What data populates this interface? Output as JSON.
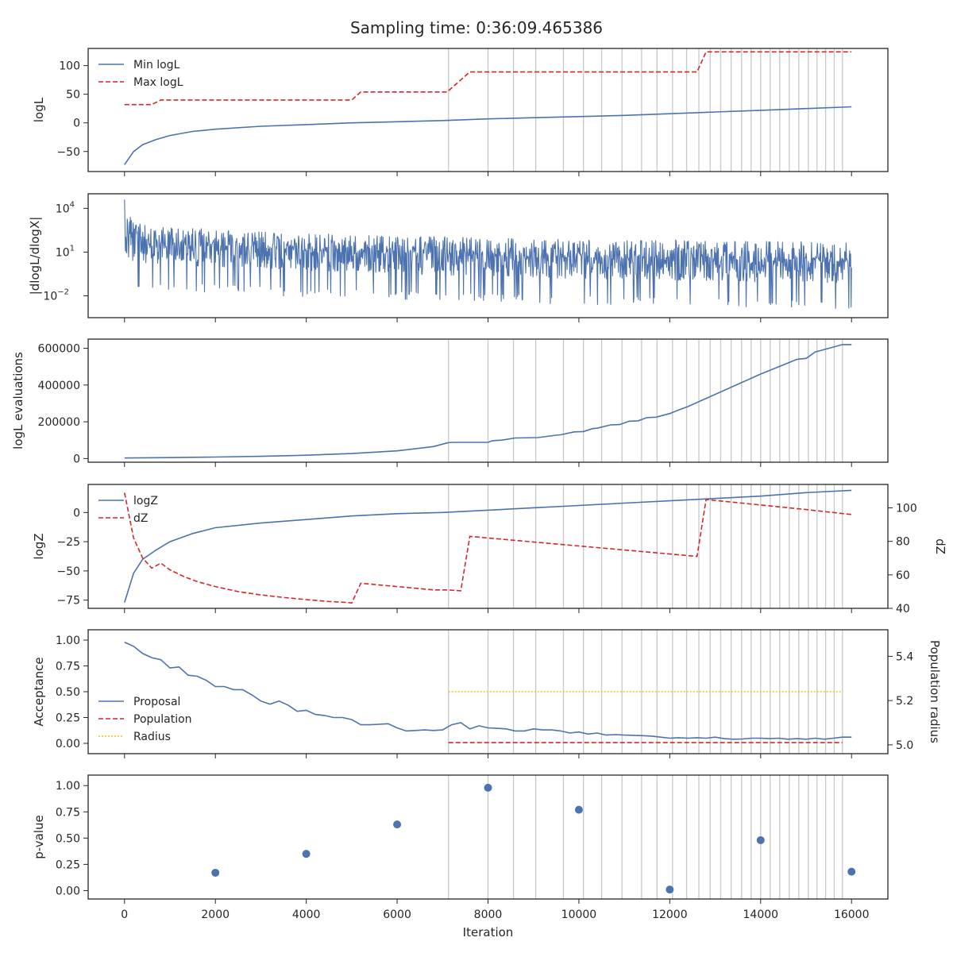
{
  "figure_title": "Sampling time: 0:36:09.465386",
  "colors": {
    "blue": "#4c72b0",
    "red": "#d62728",
    "gold": "#f2c12e",
    "vline": "#c8c8c8",
    "frame": "#262626"
  },
  "x_axis": {
    "label": "Iteration",
    "ticks": [
      0,
      2000,
      4000,
      6000,
      8000,
      10000,
      12000,
      14000,
      16000
    ],
    "range": [
      -800,
      16800
    ]
  },
  "vertical_lines": [
    7130,
    8000,
    8560,
    9050,
    9660,
    10100,
    10500,
    10950,
    11380,
    11720,
    12060,
    12370,
    12640,
    12890,
    13120,
    13350,
    13580,
    13790,
    14000,
    14210,
    14420,
    14630,
    14840,
    15050,
    15240,
    15430,
    15620,
    15800
  ],
  "chart_data": [
    {
      "type": "line",
      "ylabel": "logL",
      "ylim": [
        -85,
        130
      ],
      "yticks": [
        -50,
        0,
        50,
        100
      ],
      "ytick_labels": [
        "−50",
        "0",
        "50",
        "100"
      ],
      "legend": {
        "placement": "top-left",
        "entries": [
          "Min logL",
          "Max logL"
        ]
      },
      "series": [
        {
          "name": "Min logL",
          "style": "solid",
          "x": [
            0,
            200,
            400,
            700,
            1000,
            1500,
            2000,
            3000,
            4000,
            5000,
            6000,
            7000,
            8000,
            9000,
            10000,
            11000,
            12000,
            13000,
            14000,
            15000,
            16000
          ],
          "y": [
            -73,
            -50,
            -38,
            -29,
            -22,
            -15,
            -11,
            -6,
            -3,
            0,
            2,
            4,
            7,
            9,
            11,
            13,
            16,
            19,
            22,
            25,
            28
          ]
        },
        {
          "name": "Max logL",
          "style": "dashed",
          "x": [
            0,
            600,
            800,
            5000,
            5200,
            7100,
            7600,
            12600,
            12800,
            16000
          ],
          "y": [
            32,
            32,
            40,
            40,
            54,
            54,
            89,
            89,
            124,
            124
          ]
        }
      ]
    },
    {
      "type": "line",
      "ylabel": "|dlogL/dlogX|",
      "yscale": "log",
      "ylim": [
        -3.5,
        5
      ],
      "yticks": [
        -2,
        1,
        4
      ],
      "series": [
        {
          "name": "",
          "style": "noisy",
          "x_range": [
            0,
            16000
          ],
          "envelope_log10_upper": [
            4.6,
            3.2,
            2.8,
            2.5,
            2.3,
            2.2
          ],
          "envelope_log10_lower": [
            -1.5,
            -2.0,
            -2.3,
            -2.6,
            -2.8,
            -3.0
          ]
        }
      ]
    },
    {
      "type": "line",
      "ylabel": "logL evaluations",
      "ylim": [
        -20000,
        650000
      ],
      "yticks": [
        0,
        200000,
        400000,
        600000
      ],
      "ytick_labels": [
        "0",
        "200000",
        "400000",
        "600000"
      ],
      "series": [
        {
          "name": "",
          "style": "solid",
          "x": [
            0,
            1000,
            2000,
            3000,
            4000,
            5000,
            6000,
            6800,
            7100,
            7200,
            8000,
            8100,
            8300,
            8600,
            9100,
            9500,
            9600,
            9900,
            10100,
            10300,
            10400,
            10700,
            10900,
            11100,
            11300,
            11500,
            11700,
            12000,
            12200,
            12400,
            14000,
            14400,
            14600,
            14800,
            15000,
            15200,
            15800,
            16000
          ],
          "y": [
            3000,
            5000,
            8000,
            12000,
            18000,
            27000,
            42000,
            65000,
            85000,
            88000,
            88000,
            97000,
            100000,
            112000,
            114000,
            127000,
            129000,
            145000,
            147000,
            163000,
            165000,
            183000,
            185000,
            203000,
            205000,
            223000,
            225000,
            245000,
            265000,
            283000,
            460000,
            500000,
            520000,
            540000,
            545000,
            580000,
            620000,
            620000
          ]
        }
      ]
    },
    {
      "type": "line",
      "ylabel": "logZ",
      "y2label": "dZ",
      "ylim": [
        -82,
        24
      ],
      "yticks": [
        -75,
        -50,
        -25,
        0
      ],
      "ytick_labels": [
        "−75",
        "−50",
        "−25",
        "0"
      ],
      "y2lim": [
        40,
        114
      ],
      "y2ticks": [
        40,
        60,
        80,
        100
      ],
      "legend": {
        "placement": "top-left",
        "entries": [
          "logZ",
          "dZ"
        ]
      },
      "series": [
        {
          "name": "logZ",
          "axis": "left",
          "style": "solid",
          "x": [
            0,
            200,
            400,
            700,
            1000,
            1500,
            2000,
            3000,
            4000,
            5000,
            6000,
            7000,
            8000,
            9000,
            10000,
            11000,
            12000,
            13000,
            14000,
            15000,
            16000
          ],
          "y": [
            -77,
            -52,
            -40,
            -32,
            -25,
            -18,
            -13,
            -9,
            -6,
            -3,
            -1,
            0,
            2,
            4,
            6,
            8,
            10,
            12,
            14,
            17,
            19
          ]
        },
        {
          "name": "dZ",
          "axis": "right",
          "style": "dashed",
          "x": [
            0,
            200,
            400,
            600,
            800,
            1000,
            1300,
            1600,
            2000,
            2500,
            3000,
            3500,
            4000,
            4500,
            4900,
            5000,
            5200,
            6800,
            7100,
            7400,
            7600,
            12600,
            12800,
            15000,
            16000
          ],
          "y": [
            109,
            82,
            70,
            64,
            67,
            63,
            59,
            56,
            53,
            50,
            48,
            46.5,
            45.2,
            44.1,
            43.5,
            43.2,
            55,
            51,
            51,
            50.5,
            83,
            71,
            105,
            99,
            96
          ]
        }
      ]
    },
    {
      "type": "line",
      "ylabel": "Acceptance",
      "y2label": "Population radius",
      "ylim": [
        -0.1,
        1.1
      ],
      "yticks": [
        0.0,
        0.25,
        0.5,
        0.75,
        1.0
      ],
      "ytick_labels": [
        "0.00",
        "0.25",
        "0.50",
        "0.75",
        "1.00"
      ],
      "y2lim": [
        4.96,
        5.52
      ],
      "y2ticks": [
        5.0,
        5.2,
        5.4
      ],
      "y2tick_labels": [
        "5.0",
        "5.2",
        "5.4"
      ],
      "legend": {
        "placement": "center-left",
        "entries": [
          "Proposal",
          "Population",
          "Radius"
        ]
      },
      "series": [
        {
          "name": "Proposal",
          "axis": "left",
          "style": "solid",
          "x": [
            0,
            200,
            400,
            600,
            800,
            1000,
            1200,
            1400,
            1600,
            1800,
            2000,
            2200,
            2400,
            2600,
            2800,
            3000,
            3200,
            3400,
            3600,
            3800,
            4000,
            4200,
            4400,
            4600,
            4800,
            5000,
            5200,
            5400,
            5600,
            5800,
            6000,
            6200,
            6400,
            6600,
            6800,
            7000,
            7200,
            7400,
            7600,
            7800,
            8000,
            8200,
            8400,
            8600,
            8800,
            9000,
            9200,
            9400,
            9600,
            9800,
            10000,
            10200,
            10400,
            10600,
            10800,
            11000,
            11200,
            11400,
            11600,
            11800,
            12000,
            12200,
            12400,
            12600,
            12800,
            13000,
            13200,
            13400,
            13600,
            13800,
            14000,
            14200,
            14400,
            14600,
            14800,
            15000,
            15200,
            15400,
            15600,
            15800,
            16000
          ],
          "y": [
            0.98,
            0.94,
            0.87,
            0.83,
            0.81,
            0.73,
            0.74,
            0.66,
            0.65,
            0.61,
            0.55,
            0.55,
            0.52,
            0.52,
            0.47,
            0.41,
            0.38,
            0.41,
            0.37,
            0.31,
            0.32,
            0.28,
            0.27,
            0.25,
            0.25,
            0.23,
            0.18,
            0.18,
            0.185,
            0.19,
            0.15,
            0.12,
            0.125,
            0.13,
            0.125,
            0.13,
            0.18,
            0.2,
            0.14,
            0.17,
            0.15,
            0.145,
            0.14,
            0.12,
            0.12,
            0.14,
            0.13,
            0.13,
            0.12,
            0.1,
            0.11,
            0.09,
            0.1,
            0.08,
            0.085,
            0.08,
            0.078,
            0.075,
            0.07,
            0.06,
            0.05,
            0.055,
            0.05,
            0.055,
            0.05,
            0.06,
            0.045,
            0.04,
            0.042,
            0.05,
            0.05,
            0.045,
            0.05,
            0.04,
            0.045,
            0.04,
            0.05,
            0.04,
            0.05,
            0.06,
            0.06
          ]
        },
        {
          "name": "Population",
          "axis": "right",
          "style": "dashed",
          "x": [
            7130,
            15800
          ],
          "y": [
            5.01,
            5.01
          ]
        },
        {
          "name": "Radius",
          "axis": "left",
          "style": "dotted",
          "x": [
            7130,
            15800
          ],
          "y": [
            0.5,
            0.5
          ]
        }
      ]
    },
    {
      "type": "scatter",
      "ylabel": "p-value",
      "ylim": [
        -0.08,
        1.1
      ],
      "yticks": [
        0.0,
        0.25,
        0.5,
        0.75,
        1.0
      ],
      "ytick_labels": [
        "0.00",
        "0.25",
        "0.50",
        "0.75",
        "1.00"
      ],
      "series": [
        {
          "name": "",
          "x": [
            2000,
            4000,
            6000,
            8000,
            10000,
            12000,
            14000,
            16000
          ],
          "y": [
            0.17,
            0.35,
            0.63,
            0.98,
            0.77,
            0.01,
            0.48,
            0.18
          ]
        }
      ]
    }
  ]
}
